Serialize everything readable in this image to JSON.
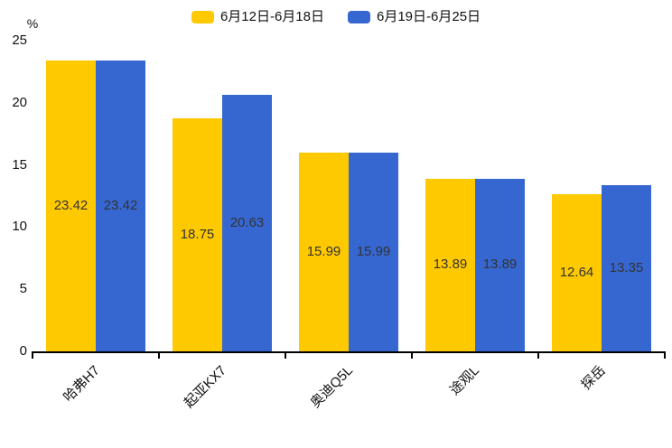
{
  "chart_data": {
    "type": "bar",
    "title": "",
    "ylabel": "%",
    "xlabel": "",
    "ylim": [
      0,
      25
    ],
    "yticks": [
      0,
      5,
      10,
      15,
      20,
      25
    ],
    "grid": false,
    "legend_position": "top-center",
    "x_label_rotation_deg": 45,
    "categories": [
      "哈弗H7",
      "起亚KX7",
      "奥迪Q5L",
      "途观L",
      "探岳"
    ],
    "series": [
      {
        "name": "6月12日-6月18日",
        "color": "#FFC900",
        "values": [
          23.42,
          18.75,
          15.99,
          13.89,
          12.64
        ]
      },
      {
        "name": "6月19日-6月25日",
        "color": "#3667D1",
        "values": [
          23.42,
          20.63,
          15.99,
          13.89,
          13.35
        ]
      }
    ]
  },
  "colors": {
    "background": "#ffffff",
    "axis": "#000000",
    "value_label": "#333333",
    "tick_label": "#111111"
  }
}
